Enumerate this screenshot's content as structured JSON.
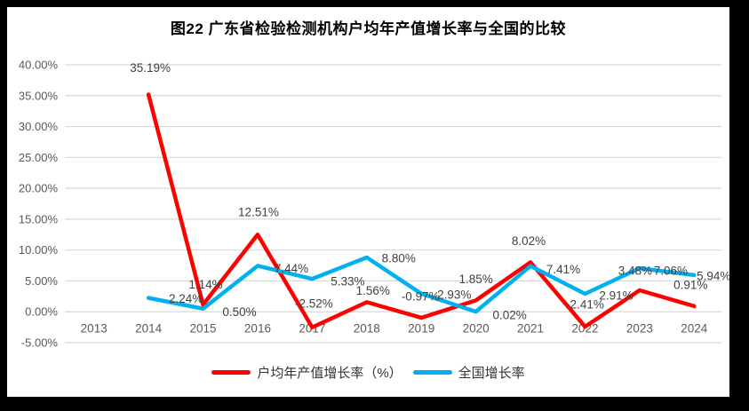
{
  "title": "图22  广东省检验检测机构户均年产值增长率与全国的比较",
  "colors": {
    "background": "#000000",
    "canvas": "#ffffff",
    "grid": "#d9d9d9",
    "axis_text": "#595959",
    "label_text": "#404040",
    "series_red": "#ff0000",
    "series_blue": "#00b0f0"
  },
  "chart_data": {
    "type": "line",
    "title": "图22  广东省检验检测机构户均年产值增长率与全国的比较",
    "categories": [
      "2013",
      "2014",
      "2015",
      "2016",
      "2017",
      "2018",
      "2019",
      "2020",
      "2021",
      "2022",
      "2023",
      "2024"
    ],
    "series": [
      {
        "name": "户均年产值增长率（%）",
        "color": "#ff0000",
        "values": [
          null,
          35.19,
          1.14,
          12.51,
          -2.52,
          1.56,
          -0.97,
          1.85,
          8.02,
          -2.41,
          3.48,
          0.91
        ],
        "labels": [
          null,
          "35.19%",
          "1.14%",
          "12.51%",
          "-2.52%",
          "1.56%",
          "-0.97%",
          "1.85%",
          "8.02%",
          "-2.41%",
          "3.48%",
          "0.91%"
        ],
        "label_offsets": [
          null,
          [
            2,
            -30
          ],
          [
            3,
            -23
          ],
          [
            1,
            -25
          ],
          [
            2,
            -27
          ],
          [
            7,
            -13
          ],
          [
            -1,
            -24
          ],
          [
            0,
            -24
          ],
          [
            -2,
            -24
          ],
          [
            0,
            -25
          ],
          [
            -5,
            -22
          ],
          [
            -4,
            -24
          ]
        ]
      },
      {
        "name": "全国增长率",
        "color": "#00b0f0",
        "values": [
          null,
          2.24,
          0.5,
          7.44,
          5.33,
          8.8,
          2.93,
          0.02,
          7.41,
          2.91,
          7.06,
          5.94
        ],
        "labels": [
          null,
          "2.24%",
          "0.50%",
          "7.44%",
          "5.33%",
          "8.80%",
          "2.93%",
          "0.02%",
          "7.41%",
          "2.91%",
          "7.06%",
          "5.94%"
        ],
        "label_offsets": [
          null,
          [
            42,
            1
          ],
          [
            41,
            4
          ],
          [
            38,
            3
          ],
          [
            40,
            3
          ],
          [
            36,
            1
          ],
          [
            37,
            1
          ],
          [
            38,
            4
          ],
          [
            37,
            4
          ],
          [
            35,
            2
          ],
          [
            35,
            3
          ],
          [
            22,
            1
          ]
        ]
      }
    ],
    "y_axis": {
      "min": -5,
      "max": 40,
      "step": 5,
      "tick_labels": [
        "-5.00%",
        "0.00%",
        "5.00%",
        "10.00%",
        "15.00%",
        "20.00%",
        "25.00%",
        "30.00%",
        "35.00%",
        "40.00%"
      ]
    },
    "xlabel": "",
    "ylabel": "",
    "grid": true,
    "legend_position": "bottom"
  }
}
